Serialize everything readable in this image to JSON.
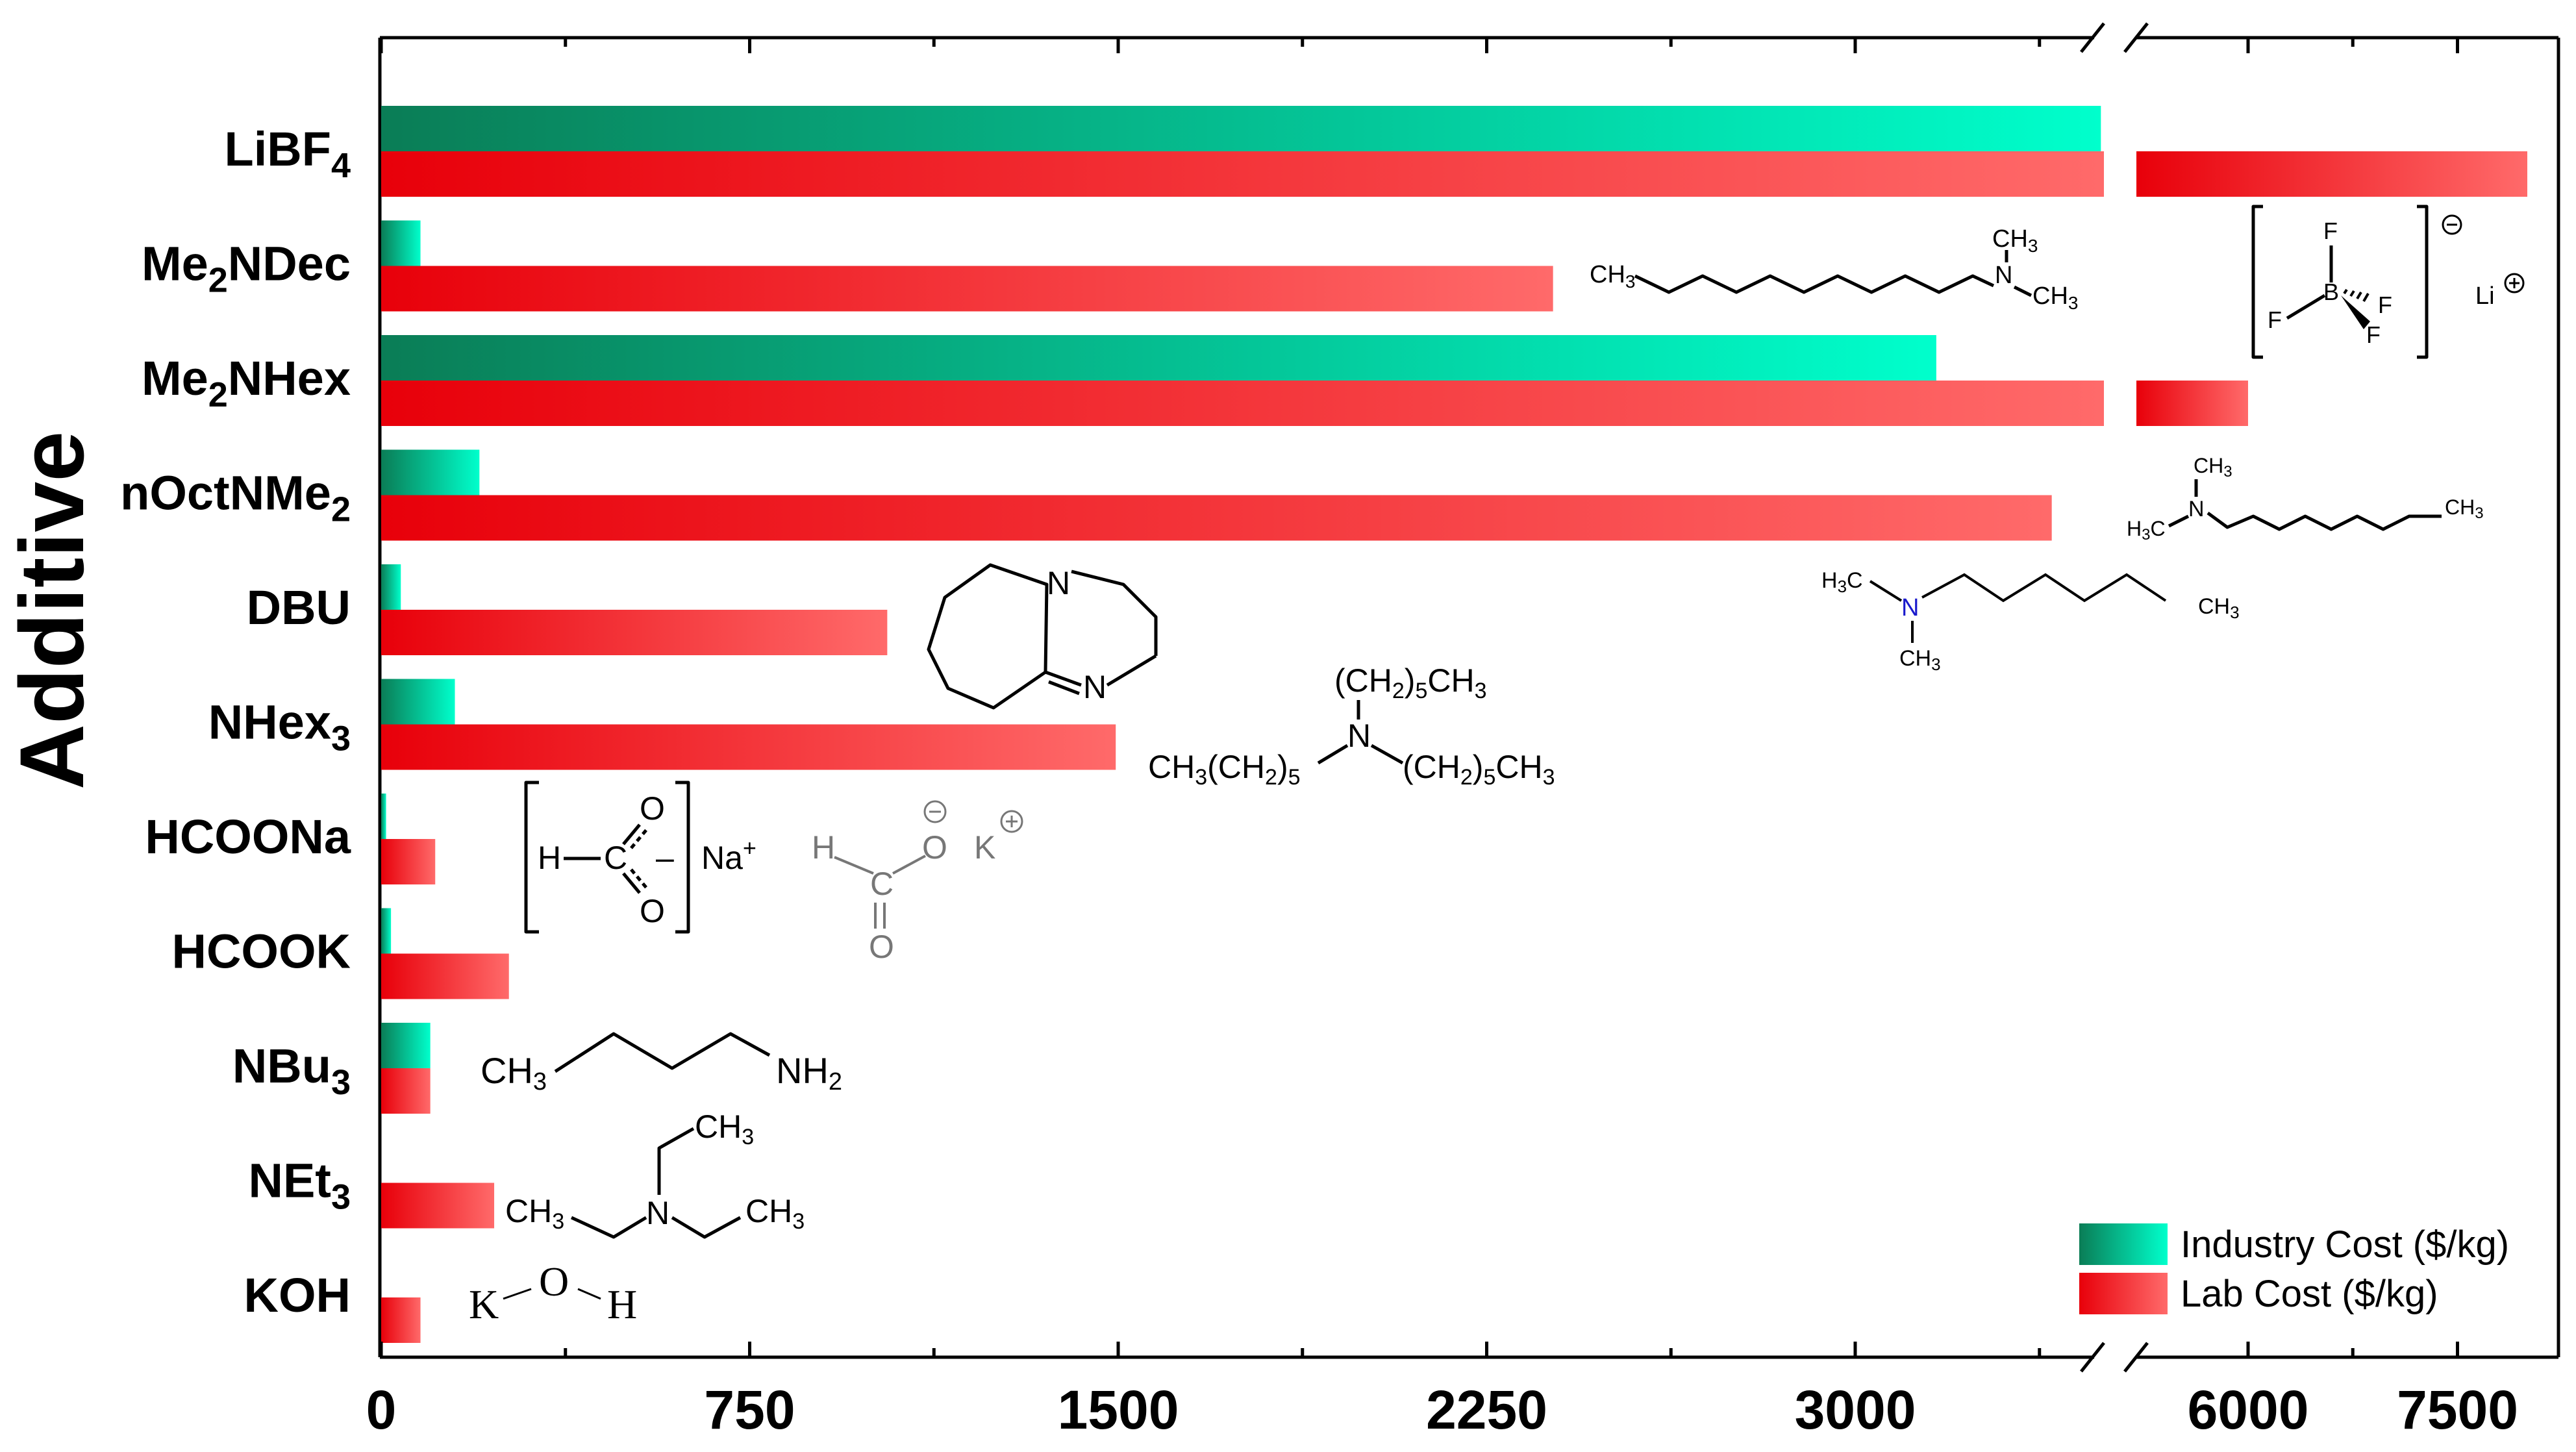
{
  "chart_data": {
    "type": "bar",
    "orientation": "horizontal",
    "ylabel": "Additive",
    "categories": [
      {
        "base": "LiBF",
        "sub": "4",
        "rest": ""
      },
      {
        "base": "Me",
        "sub": "2",
        "rest": "NDec"
      },
      {
        "base": "Me",
        "sub": "2",
        "rest": "NHex"
      },
      {
        "base": "nOctNMe",
        "sub": "2",
        "rest": ""
      },
      {
        "base": "DBU",
        "sub": "",
        "rest": ""
      },
      {
        "base": "NHex",
        "sub": "3",
        "rest": ""
      },
      {
        "base": "HCOONa",
        "sub": "",
        "rest": ""
      },
      {
        "base": "HCOOK",
        "sub": "",
        "rest": ""
      },
      {
        "base": "NBu",
        "sub": "3",
        "rest": ""
      },
      {
        "base": "NEt",
        "sub": "3",
        "rest": ""
      },
      {
        "base": "KOH",
        "sub": "",
        "rest": ""
      }
    ],
    "series": [
      {
        "name": "Industry Cost ($/kg)",
        "color_dark": "#0a7d56",
        "color_light": "#00ffcc",
        "values": [
          3500,
          80,
          3165,
          200,
          40,
          150,
          10,
          20,
          100,
          0,
          0
        ]
      },
      {
        "name": "Lab Cost ($/kg)",
        "color_dark": "#e8000a",
        "color_light": "#ff6a6a",
        "values": [
          8000,
          2385,
          6000,
          3400,
          1030,
          1495,
          110,
          260,
          100,
          230,
          80
        ]
      }
    ],
    "x_axis": {
      "segment1": {
        "range": [
          0,
          3500
        ],
        "ticks": [
          0,
          750,
          1500,
          2250,
          3000
        ]
      },
      "segment2": {
        "range": [
          5200,
          8200
        ],
        "ticks": [
          6000,
          7500
        ]
      },
      "broken": true
    },
    "legend_position": "bottom-right",
    "grid": false
  },
  "annotations": {
    "libf4": {
      "atoms": [
        "F",
        "B",
        "F",
        "F",
        "F",
        "Li"
      ]
    },
    "me2ndec": {
      "left": "CH",
      "left_sub": "3",
      "n": "N",
      "top": "CH",
      "top_sub": "3",
      "right": "CH",
      "right_sub": "3"
    },
    "noctnme2": {
      "n": "N",
      "top": "CH",
      "top_sub": "3",
      "left_a": "H",
      "left_sub": "3",
      "left_b": "C",
      "right": "CH",
      "right_sub": "3"
    },
    "me2nhex": {
      "left_a": "H",
      "left_sub": "3",
      "left_b": "C",
      "n": "N",
      "bottom": "CH",
      "bottom_sub": "3",
      "right": "CH",
      "right_sub": "3"
    },
    "dbu": {
      "n1": "N",
      "n2": "N"
    },
    "nhex3": {
      "top_a": "(CH",
      "top_sub1": "2",
      "top_b": ")",
      "top_sub2": "5",
      "top_c": "CH",
      "top_sub3": "3",
      "n": "N",
      "left_a": "CH",
      "left_sub1": "3",
      "left_b": "(CH",
      "left_sub2": "2",
      "left_c": ")",
      "left_sub3": "5",
      "right_a": "(CH",
      "right_sub1": "2",
      "right_b": ")",
      "right_sub2": "5",
      "right_c": "CH",
      "right_sub3": "3"
    },
    "hcoona": {
      "h": "H",
      "c": "C",
      "o1": "O",
      "o2": "O",
      "minus": "–",
      "na": "Na",
      "plus": "+"
    },
    "hcook": {
      "h": "H",
      "c": "C",
      "o1": "O",
      "o2": "O",
      "k": "K"
    },
    "nbu3": {
      "left": "CH",
      "left_sub": "3",
      "right": "NH",
      "right_sub": "2"
    },
    "net3": {
      "n": "N",
      "top": "CH",
      "top_sub": "3",
      "left": "CH",
      "left_sub": "3",
      "right": "CH",
      "right_sub": "3"
    },
    "koh": {
      "k": "K",
      "o": "O",
      "h": "H"
    }
  }
}
